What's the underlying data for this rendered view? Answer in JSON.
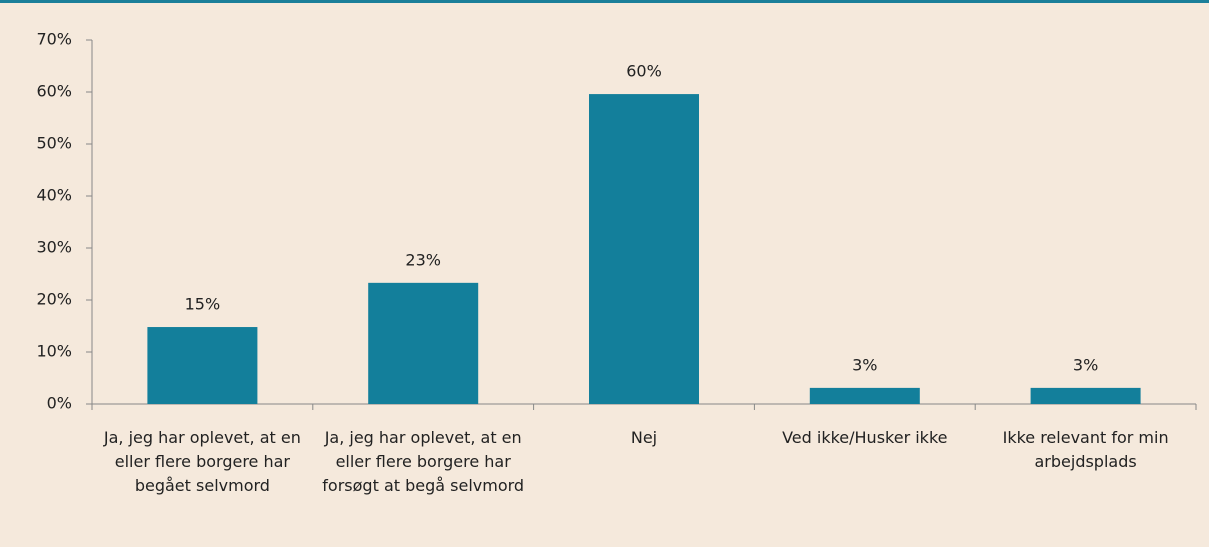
{
  "chart_data": {
    "type": "bar",
    "categories": [
      "Ja, jeg har oplevet, at en eller flere borgere har begået selvmord",
      "Ja, jeg har oplevet, at en eller flere borgere har forsøgt at begå selvmord",
      "Nej",
      "Ved ikke/Husker ikke",
      "Ikke relevant for min arbejdsplads"
    ],
    "values": [
      14.8,
      23.3,
      59.6,
      3.1,
      3.1
    ],
    "value_labels": [
      "15%",
      "23%",
      "60%",
      "3%",
      "3%"
    ],
    "color": "#137f9b",
    "ylim": [
      0,
      70
    ],
    "yticks": [
      {
        "value": 0,
        "label": "0%"
      },
      {
        "value": 10,
        "label": "10%"
      },
      {
        "value": 20,
        "label": "20%"
      },
      {
        "value": 30,
        "label": "30%"
      },
      {
        "value": 40,
        "label": "40%"
      },
      {
        "value": 50,
        "label": "50%"
      },
      {
        "value": 60,
        "label": "60%"
      },
      {
        "value": 70,
        "label": "70%"
      }
    ],
    "grid": false
  }
}
